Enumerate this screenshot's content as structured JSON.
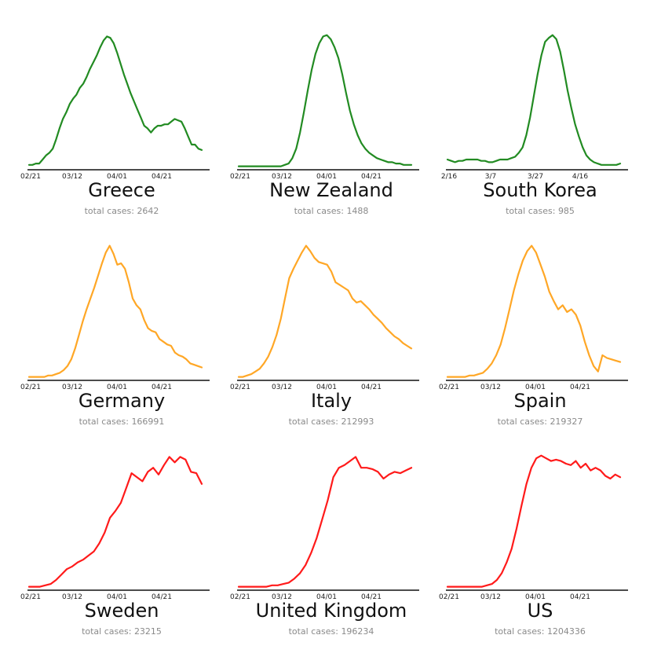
{
  "chart_data": [
    {
      "type": "line",
      "title": "Greece",
      "color": "#228b22",
      "x_ticks": [
        "02/21",
        "03/12",
        "04/01",
        "04/21"
      ],
      "total_label": "total cases:",
      "total_value": "2642",
      "ylim": [
        0,
        1
      ],
      "values": [
        0.03,
        0.03,
        0.04,
        0.04,
        0.07,
        0.1,
        0.12,
        0.15,
        0.22,
        0.3,
        0.37,
        0.42,
        0.48,
        0.52,
        0.55,
        0.6,
        0.63,
        0.68,
        0.74,
        0.79,
        0.84,
        0.9,
        0.95,
        0.98,
        0.97,
        0.93,
        0.86,
        0.78,
        0.7,
        0.63,
        0.56,
        0.5,
        0.44,
        0.38,
        0.32,
        0.3,
        0.27,
        0.3,
        0.32,
        0.32,
        0.33,
        0.33,
        0.35,
        0.37,
        0.36,
        0.35,
        0.3,
        0.24,
        0.18,
        0.18,
        0.15,
        0.14
      ]
    },
    {
      "type": "line",
      "title": "New Zealand",
      "color": "#228b22",
      "x_ticks": [
        "02/21",
        "03/12",
        "04/01",
        "04/21"
      ],
      "total_label": "total cases:",
      "total_value": "1488",
      "ylim": [
        0,
        1
      ],
      "values": [
        0.02,
        0.02,
        0.02,
        0.02,
        0.02,
        0.02,
        0.02,
        0.02,
        0.02,
        0.02,
        0.02,
        0.02,
        0.03,
        0.04,
        0.08,
        0.15,
        0.27,
        0.42,
        0.58,
        0.73,
        0.85,
        0.93,
        0.98,
        0.99,
        0.96,
        0.9,
        0.82,
        0.7,
        0.56,
        0.43,
        0.33,
        0.25,
        0.19,
        0.15,
        0.12,
        0.1,
        0.08,
        0.07,
        0.06,
        0.05,
        0.05,
        0.04,
        0.04,
        0.03,
        0.03,
        0.03
      ]
    },
    {
      "type": "line",
      "title": "South Korea",
      "color": "#228b22",
      "x_ticks": [
        "2/16",
        "3/7",
        "3/27",
        "4/16"
      ],
      "total_label": "total cases:",
      "total_value": "985",
      "ylim": [
        0,
        1
      ],
      "values": [
        0.07,
        0.06,
        0.05,
        0.06,
        0.06,
        0.07,
        0.07,
        0.07,
        0.07,
        0.06,
        0.06,
        0.05,
        0.05,
        0.06,
        0.07,
        0.07,
        0.07,
        0.08,
        0.09,
        0.12,
        0.16,
        0.25,
        0.38,
        0.54,
        0.7,
        0.84,
        0.94,
        0.97,
        0.99,
        0.96,
        0.87,
        0.73,
        0.58,
        0.45,
        0.33,
        0.24,
        0.16,
        0.1,
        0.07,
        0.05,
        0.04,
        0.03,
        0.03,
        0.03,
        0.03,
        0.03,
        0.04
      ]
    },
    {
      "type": "line",
      "title": "Germany",
      "color": "#ffa726",
      "x_ticks": [
        "02/21",
        "03/12",
        "04/01",
        "04/21"
      ],
      "total_label": "total cases:",
      "total_value": "166991",
      "ylim": [
        0,
        1
      ],
      "values": [
        0.02,
        0.02,
        0.02,
        0.02,
        0.02,
        0.03,
        0.03,
        0.04,
        0.05,
        0.07,
        0.1,
        0.15,
        0.23,
        0.33,
        0.43,
        0.52,
        0.6,
        0.68,
        0.77,
        0.86,
        0.94,
        0.99,
        0.93,
        0.85,
        0.86,
        0.82,
        0.72,
        0.6,
        0.55,
        0.52,
        0.44,
        0.38,
        0.36,
        0.35,
        0.3,
        0.28,
        0.26,
        0.25,
        0.2,
        0.18,
        0.17,
        0.15,
        0.12,
        0.11,
        0.1,
        0.09
      ]
    },
    {
      "type": "line",
      "title": "Italy",
      "color": "#ffa726",
      "x_ticks": [
        "02/21",
        "03/12",
        "04/01",
        "04/21"
      ],
      "total_label": "total cases:",
      "total_value": "212993",
      "ylim": [
        0,
        1
      ],
      "values": [
        0.02,
        0.02,
        0.03,
        0.04,
        0.06,
        0.08,
        0.12,
        0.17,
        0.24,
        0.33,
        0.45,
        0.6,
        0.75,
        0.82,
        0.88,
        0.94,
        0.99,
        0.95,
        0.9,
        0.87,
        0.86,
        0.85,
        0.8,
        0.72,
        0.7,
        0.68,
        0.66,
        0.6,
        0.57,
        0.58,
        0.55,
        0.52,
        0.48,
        0.45,
        0.42,
        0.38,
        0.35,
        0.32,
        0.3,
        0.27,
        0.25,
        0.23
      ]
    },
    {
      "type": "line",
      "title": "Spain",
      "color": "#ffa726",
      "x_ticks": [
        "02/21",
        "03/12",
        "04/01",
        "04/21"
      ],
      "total_label": "total cases:",
      "total_value": "219327",
      "ylim": [
        0,
        1
      ],
      "values": [
        0.02,
        0.02,
        0.02,
        0.02,
        0.02,
        0.03,
        0.03,
        0.04,
        0.05,
        0.08,
        0.12,
        0.18,
        0.26,
        0.38,
        0.52,
        0.66,
        0.78,
        0.88,
        0.95,
        0.99,
        0.94,
        0.85,
        0.76,
        0.65,
        0.58,
        0.52,
        0.55,
        0.5,
        0.52,
        0.48,
        0.4,
        0.28,
        0.18,
        0.1,
        0.06,
        0.18,
        0.16,
        0.15,
        0.14,
        0.13
      ]
    },
    {
      "type": "line",
      "title": "Sweden",
      "color": "#ff1a1a",
      "x_ticks": [
        "02/21",
        "03/12",
        "04/01",
        "04/21"
      ],
      "total_label": "total cases:",
      "total_value": "23215",
      "ylim": [
        0,
        1
      ],
      "values": [
        0.02,
        0.02,
        0.02,
        0.03,
        0.04,
        0.07,
        0.11,
        0.15,
        0.17,
        0.2,
        0.22,
        0.25,
        0.28,
        0.34,
        0.42,
        0.53,
        0.58,
        0.64,
        0.75,
        0.86,
        0.83,
        0.8,
        0.87,
        0.9,
        0.85,
        0.92,
        0.98,
        0.94,
        0.98,
        0.96,
        0.87,
        0.86,
        0.78
      ]
    },
    {
      "type": "line",
      "title": "United Kingdom",
      "color": "#ff1a1a",
      "x_ticks": [
        "02/21",
        "03/12",
        "04/01",
        "04/21"
      ],
      "total_label": "total cases:",
      "total_value": "196234",
      "ylim": [
        0,
        1
      ],
      "values": [
        0.02,
        0.02,
        0.02,
        0.02,
        0.02,
        0.02,
        0.03,
        0.03,
        0.04,
        0.05,
        0.08,
        0.12,
        0.18,
        0.27,
        0.38,
        0.52,
        0.66,
        0.83,
        0.9,
        0.92,
        0.95,
        0.98,
        0.9,
        0.9,
        0.89,
        0.87,
        0.82,
        0.85,
        0.87,
        0.86,
        0.88,
        0.9
      ]
    },
    {
      "type": "line",
      "title": "US",
      "color": "#ff1a1a",
      "x_ticks": [
        "02/21",
        "03/12",
        "04/01",
        "04/21"
      ],
      "total_label": "total cases:",
      "total_value": "1204336",
      "ylim": [
        0,
        1
      ],
      "values": [
        0.02,
        0.02,
        0.02,
        0.02,
        0.02,
        0.02,
        0.02,
        0.02,
        0.03,
        0.04,
        0.07,
        0.12,
        0.2,
        0.3,
        0.45,
        0.62,
        0.78,
        0.9,
        0.97,
        0.99,
        0.97,
        0.95,
        0.96,
        0.95,
        0.93,
        0.92,
        0.95,
        0.9,
        0.93,
        0.88,
        0.9,
        0.88,
        0.84,
        0.82,
        0.85,
        0.83
      ]
    }
  ]
}
